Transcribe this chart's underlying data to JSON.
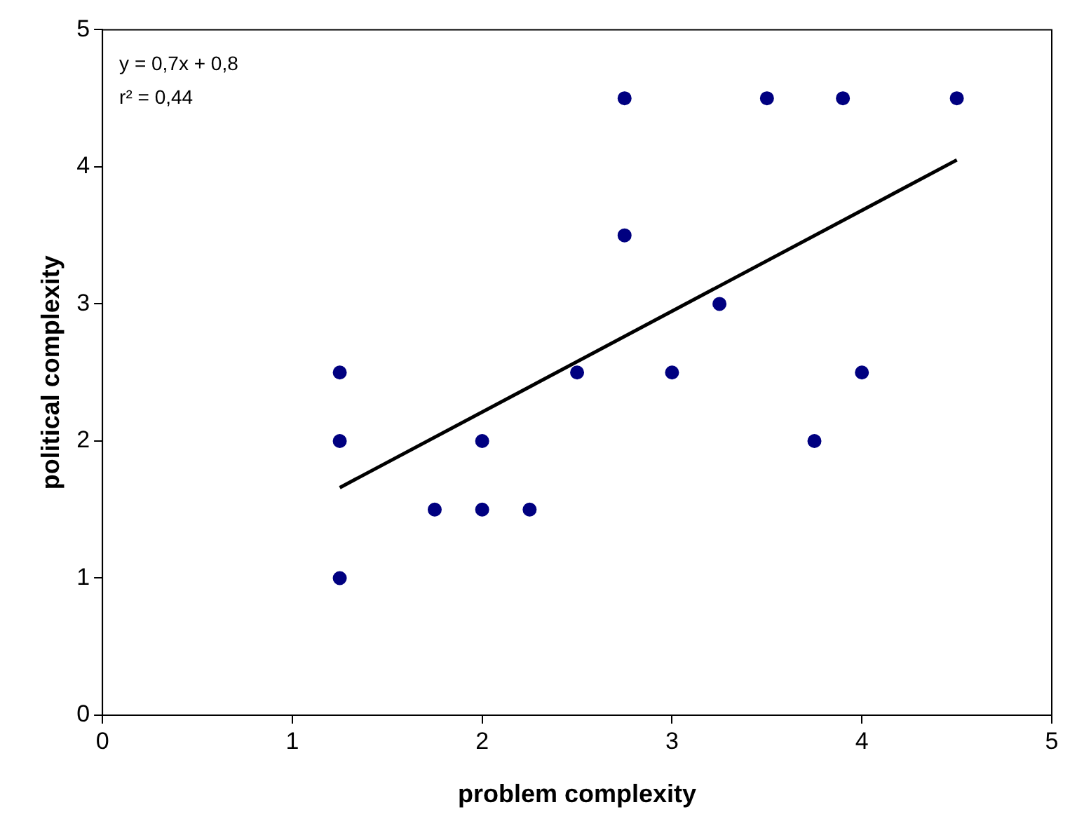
{
  "chart_data": {
    "type": "scatter",
    "xlabel": "problem complexity",
    "ylabel": "political complexity",
    "xlim": [
      0,
      5
    ],
    "xticks": [
      0,
      1,
      2,
      3,
      4,
      5
    ],
    "ylim": [
      0,
      5
    ],
    "yticks": [
      0,
      1,
      2,
      3,
      4,
      5
    ],
    "grid": false,
    "legend": false,
    "marker": "circle",
    "annotations": [
      "y = 0,7x + 0,8",
      "r² = 0,44"
    ],
    "series": [
      {
        "type": "scatter",
        "color": "#000080",
        "x": [
          1.25,
          1.25,
          1.25,
          1.75,
          2,
          2,
          2.25,
          2.5,
          2.75,
          2.75,
          3,
          3.25,
          3.5,
          3.75,
          3.9,
          4,
          4.5
        ],
        "values": [
          2.5,
          2,
          1,
          1.5,
          2,
          1.5,
          1.5,
          2.5,
          4.5,
          3.5,
          2.5,
          3,
          4.5,
          2,
          4.5,
          2.5,
          4.5
        ]
      },
      {
        "type": "line",
        "color": "#000000",
        "marker": "none",
        "line_style": "solid",
        "x": [
          1.25,
          4.5
        ],
        "values": [
          1.66,
          4.05
        ]
      }
    ]
  }
}
